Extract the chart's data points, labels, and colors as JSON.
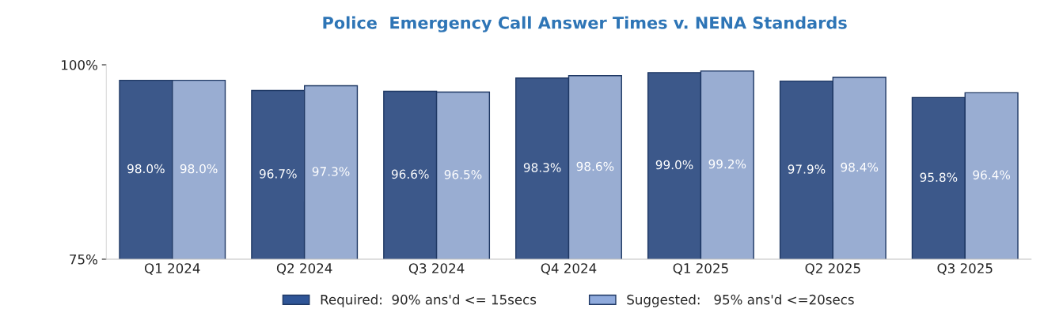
{
  "chart_data": {
    "type": "bar",
    "title": "Police  Emergency Call Answer Times v. NENA Standards",
    "categories": [
      "Q1 2024",
      "Q2 2024",
      "Q3 2024",
      "Q4 2024",
      "Q1 2025",
      "Q2 2025",
      "Q3 2025"
    ],
    "series": [
      {
        "name": "Required:  90% ans'd <= 15secs",
        "color": "#2f5597",
        "values": [
          98.0,
          96.7,
          96.6,
          98.3,
          99.0,
          97.9,
          95.8
        ],
        "value_labels": [
          "98.0%",
          "96.7%",
          "96.6%",
          "98.3%",
          "99.0%",
          "97.9%",
          "95.8%"
        ]
      },
      {
        "name": "Suggested:   95% ans'd <=20secs",
        "color": "#8faadc",
        "values": [
          98.0,
          97.3,
          96.5,
          98.6,
          99.2,
          98.4,
          96.4
        ],
        "value_labels": [
          "98.0%",
          "97.3%",
          "96.5%",
          "98.6%",
          "99.2%",
          "98.4%",
          "96.4%"
        ]
      }
    ],
    "ylim": [
      75,
      100
    ],
    "yticks": [
      {
        "value": 75,
        "label": "75%"
      },
      {
        "value": 100,
        "label": "100%"
      }
    ],
    "grid": false,
    "legend": "bottom"
  }
}
